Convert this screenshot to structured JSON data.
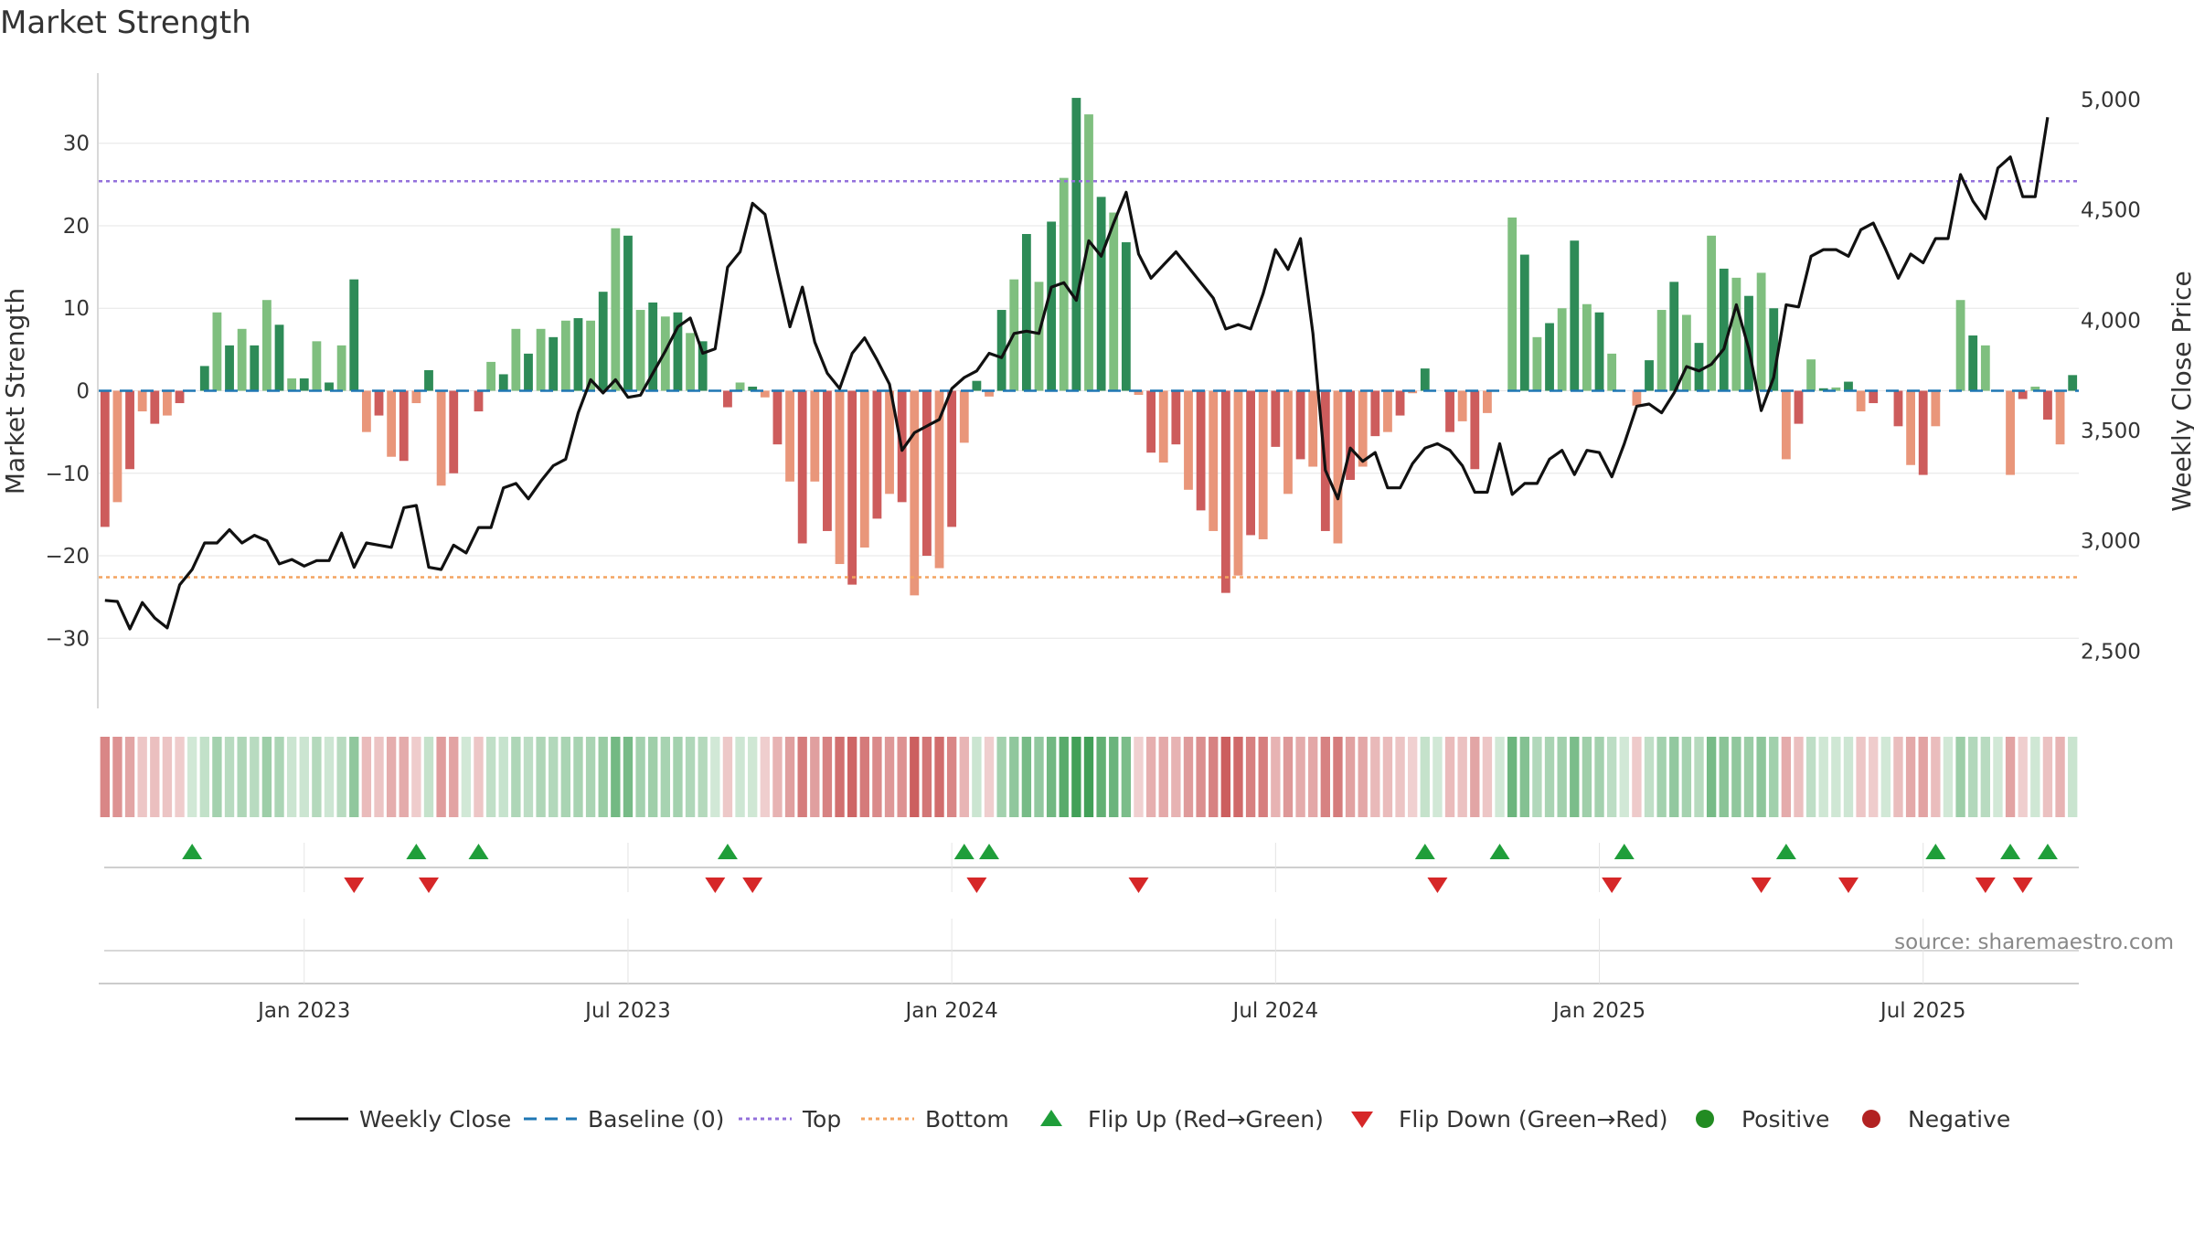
{
  "chart_data": {
    "type": "bar",
    "title": "Market Strength",
    "ylabel_left": "Market Strength",
    "ylabel_right": "Weekly Close Price",
    "ylim_left": [
      -38.5,
      38.5
    ],
    "ylim_right": [
      2240,
      5120
    ],
    "yticks_left": [
      30,
      20,
      10,
      0,
      -10,
      -20,
      -30
    ],
    "ytick_labels_left": [
      "30",
      "20",
      "10",
      "0",
      "−10",
      "−20",
      "−30"
    ],
    "yticks_right": [
      5000,
      4500,
      4000,
      3500,
      3000,
      2500
    ],
    "ytick_labels_right": [
      "5,000",
      "4,500",
      "4,000",
      "3,500",
      "3,000",
      "2,500"
    ],
    "x_tick_labels": [
      "Jan 2023",
      "Jul 2023",
      "Jan 2024",
      "Jul 2024",
      "Jan 2025",
      "Jul 2025"
    ],
    "x_tick_week_index": [
      16.5,
      42.5,
      68.5,
      94.5,
      120.5,
      146.5
    ],
    "top_line": 25.4,
    "bottom_line": -22.6,
    "source": "source: sharemaestro.com",
    "legend": [
      "Weekly Close",
      "Baseline (0)",
      "Top",
      "Bottom",
      "Flip Up (Red→Green)",
      "Flip Down (Green→Red)",
      "Positive",
      "Negative"
    ],
    "strength": [
      -16.5,
      -13.5,
      -9.5,
      -2.5,
      -4,
      -3,
      -1.5,
      0,
      3,
      9.5,
      5.5,
      7.5,
      5.5,
      11,
      8,
      1.5,
      1.5,
      6,
      1,
      5.5,
      13.5,
      -5,
      -3,
      -8,
      -8.5,
      -1.5,
      2.5,
      -11.5,
      -10,
      0,
      -2.5,
      3.5,
      2,
      7.5,
      4.5,
      7.5,
      6.5,
      8.5,
      8.8,
      8.5,
      12,
      19.7,
      18.8,
      9.8,
      10.7,
      9,
      9.5,
      7,
      6,
      0,
      -2,
      1,
      0.5,
      -0.8,
      -6.5,
      -11,
      -18.5,
      -11,
      -17,
      -21,
      -23.5,
      -19,
      -15.5,
      -12.5,
      -13.5,
      -24.8,
      -20,
      -21.5,
      -16.5,
      -6.3,
      1.2,
      -0.7,
      9.8,
      13.5,
      19,
      13.2,
      20.5,
      25.8,
      35.5,
      33.5,
      23.5,
      21.6,
      18,
      -0.5,
      -7.5,
      -8.7,
      -6.5,
      -12,
      -14.5,
      -17,
      -24.5,
      -22.4,
      -17.5,
      -18,
      -6.8,
      -12.5,
      -8.3,
      -9.2,
      -17,
      -18.5,
      -10.8,
      -9.2,
      -5.5,
      -5,
      -3,
      -0.3,
      2.7,
      0,
      -5,
      -3.7,
      -9.5,
      -2.7,
      0,
      21,
      16.5,
      6.5,
      8.2,
      10,
      18.2,
      10.5,
      9.5,
      4.5,
      0,
      -1.8,
      3.7,
      9.8,
      13.2,
      9.2,
      5.8,
      18.8,
      14.8,
      13.7,
      11.5,
      14.3,
      10,
      -8.3,
      -4,
      3.8,
      0.3,
      0.4,
      1.1,
      -2.5,
      -1.5,
      0,
      -4.3,
      -9,
      -10.2,
      -4.3,
      0,
      11,
      6.7,
      5.5,
      0,
      -10.2,
      -1,
      0.5,
      -3.5,
      -6.5,
      1.9
    ],
    "close": [
      2730,
      2725,
      2600,
      2720,
      2650,
      2605,
      2800,
      2870,
      2990,
      2990,
      3050,
      2990,
      3025,
      3000,
      2895,
      2915,
      2885,
      2910,
      2910,
      3035,
      2880,
      2990,
      2980,
      2970,
      3150,
      3160,
      2880,
      2870,
      2980,
      2945,
      3060,
      3060,
      3240,
      3260,
      3190,
      3270,
      3340,
      3370,
      3580,
      3730,
      3670,
      3730,
      3650,
      3660,
      3760,
      3860,
      3970,
      4010,
      3850,
      3870,
      4240,
      4310,
      4530,
      4480,
      4220,
      3970,
      4150,
      3900,
      3760,
      3690,
      3850,
      3920,
      3820,
      3710,
      3410,
      3490,
      3520,
      3550,
      3690,
      3740,
      3770,
      3850,
      3830,
      3940,
      3950,
      3940,
      4150,
      4170,
      4090,
      4360,
      4290,
      4440,
      4580,
      4300,
      4190,
      4250,
      4310,
      4240,
      4170,
      4100,
      3960,
      3980,
      3960,
      4120,
      4320,
      4230,
      4370,
      3940,
      3320,
      3190,
      3420,
      3360,
      3400,
      3240,
      3240,
      3350,
      3420,
      3440,
      3410,
      3340,
      3220,
      3220,
      3440,
      3210,
      3260,
      3260,
      3370,
      3410,
      3300,
      3410,
      3400,
      3290,
      3440,
      3610,
      3620,
      3580,
      3670,
      3790,
      3770,
      3800,
      3870,
      4070,
      3870,
      3590,
      3740,
      4070,
      4060,
      4290,
      4320,
      4320,
      4290,
      4410,
      4440,
      4320,
      4190,
      4300,
      4260,
      4370,
      4370,
      4660,
      4540,
      4460,
      4690,
      4740,
      4560,
      4560,
      4920
    ],
    "flip_up_weeks": [
      7,
      25,
      30,
      50,
      69,
      71,
      106,
      112,
      122,
      135,
      147,
      153,
      156
    ],
    "flip_down_weeks": [
      20,
      26,
      49,
      52,
      70,
      83,
      107,
      121,
      133,
      140,
      151,
      154
    ]
  },
  "colors": {
    "pos_dark": "#2e8b57",
    "pos_light": "#7fbf7f",
    "neg_dark": "#cd5c5c",
    "neg_light": "#e9967a",
    "top_line": "#9370db",
    "bottom_line": "#f4a460",
    "baseline": "#1f77b4",
    "close_line": "#111111",
    "flip_up": "#1f9e3a",
    "flip_down": "#d62728",
    "positive_dot": "#228b22",
    "negative_dot": "#b22222"
  }
}
